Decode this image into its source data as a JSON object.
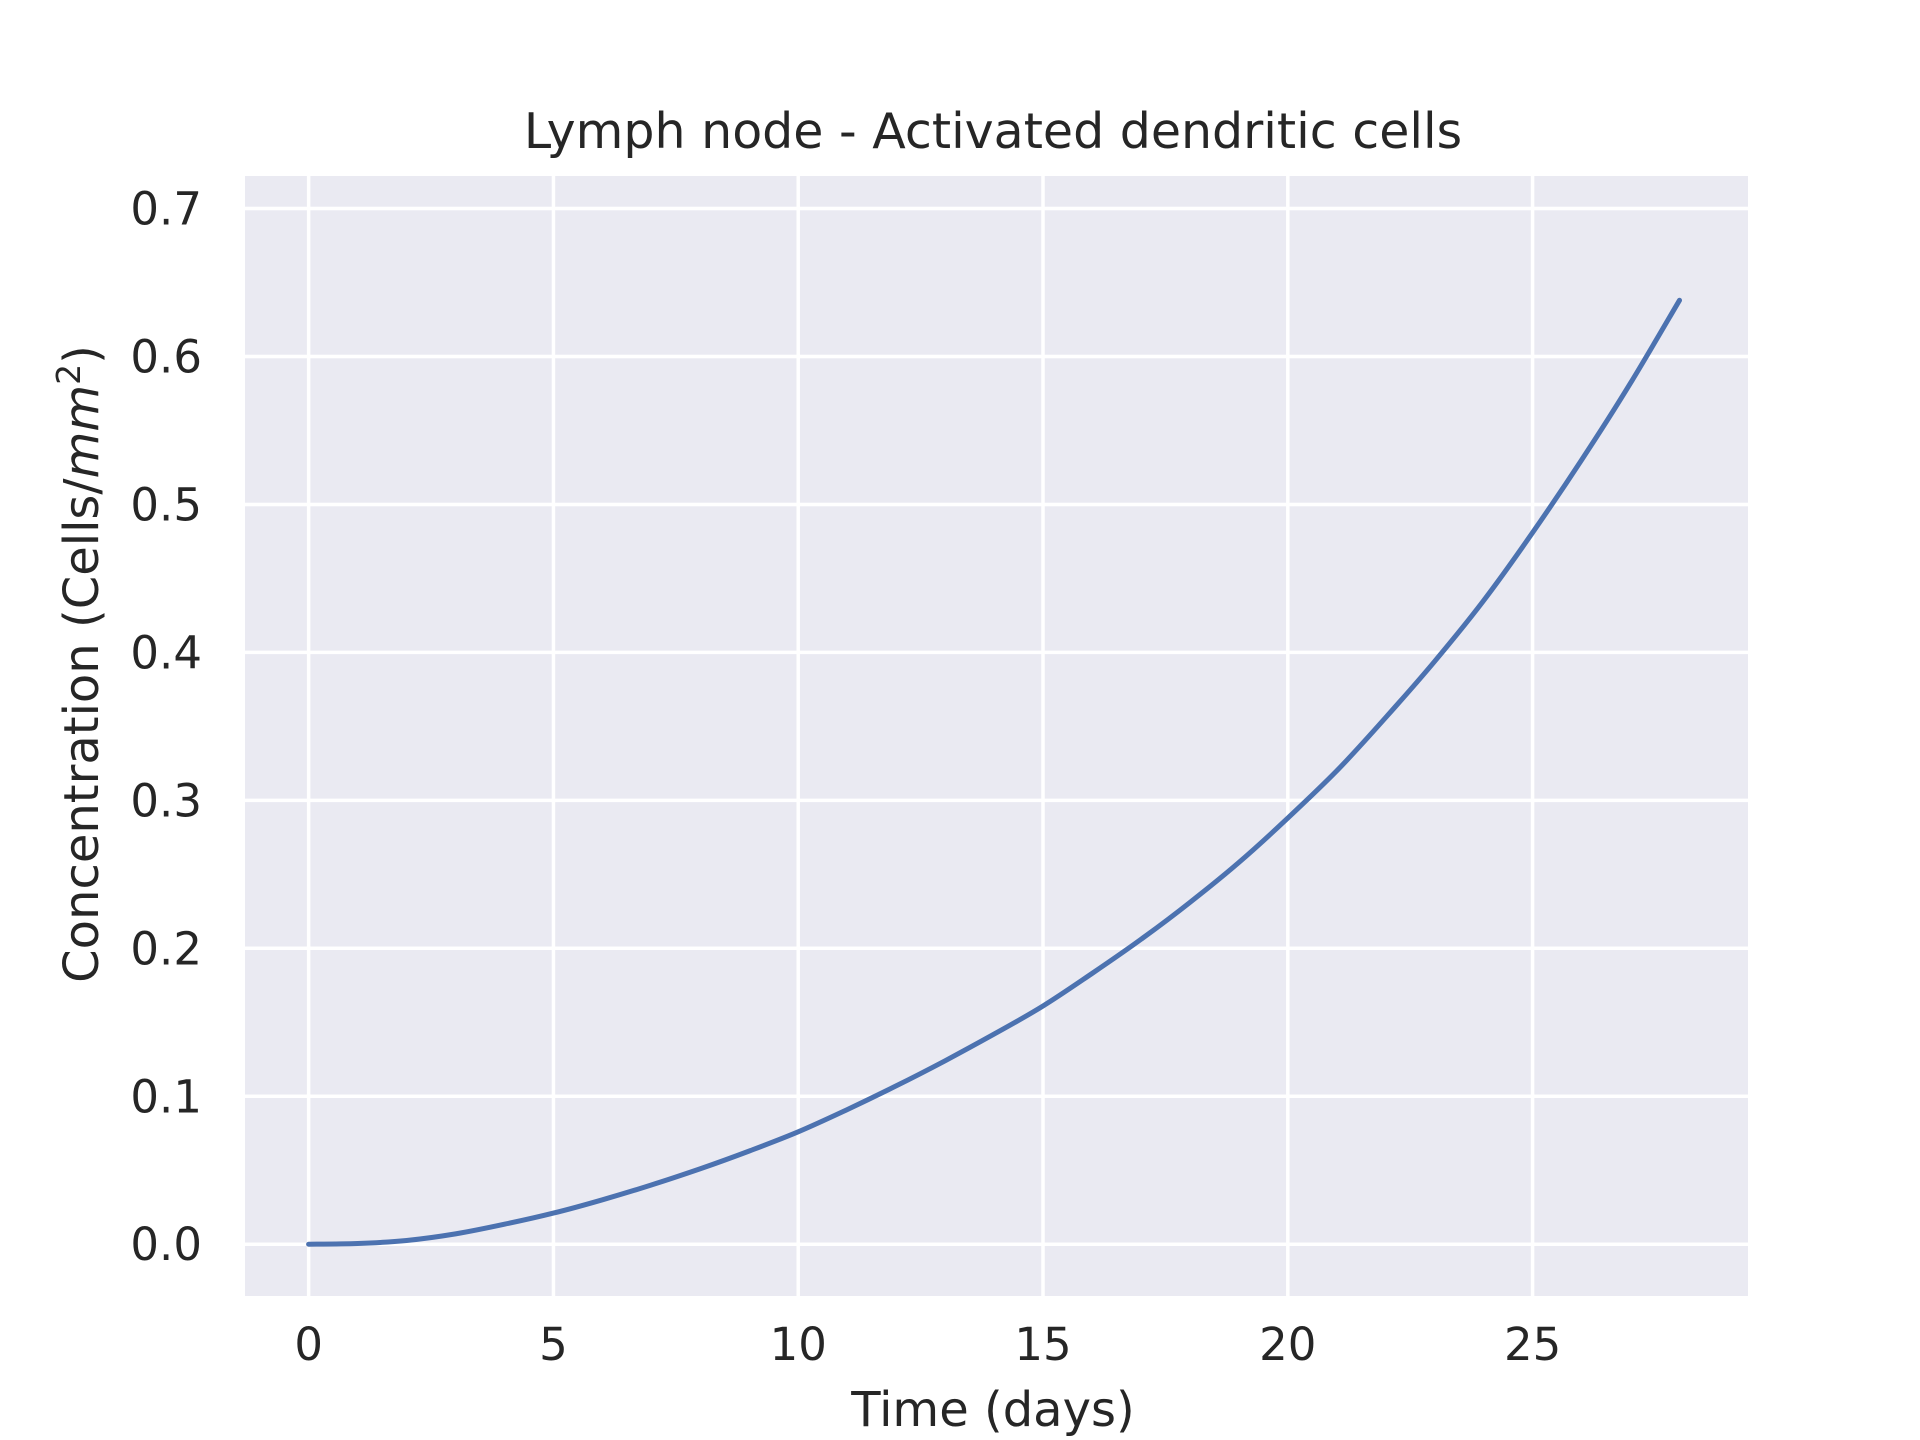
{
  "chart_data": {
    "type": "line",
    "title": "Lymph node - Activated dendritic cells",
    "xlabel": "Time (days)",
    "ylabel_prefix": "Concentration (Cells/",
    "ylabel_unit": "mm",
    "ylabel_exponent": "2",
    "ylabel_suffix": ")",
    "xlim": [
      -1.3,
      29.4
    ],
    "ylim": [
      -0.035,
      0.722
    ],
    "xticks": [
      0,
      5,
      10,
      15,
      20,
      25
    ],
    "xtick_labels": [
      "0",
      "5",
      "10",
      "15",
      "20",
      "25"
    ],
    "yticks": [
      0.0,
      0.1,
      0.2,
      0.3,
      0.4,
      0.5,
      0.6,
      0.7
    ],
    "ytick_labels": [
      "0.0",
      "0.1",
      "0.2",
      "0.3",
      "0.4",
      "0.5",
      "0.6",
      "0.7"
    ],
    "grid": true,
    "background_color": "#EAEAF2",
    "series": [
      {
        "color": "#4C72B0",
        "x": [
          0,
          1,
          2,
          3,
          4,
          5,
          6,
          7,
          8,
          9,
          10,
          11,
          12,
          13,
          14,
          15,
          16,
          17,
          18,
          19,
          20,
          21,
          22,
          23,
          24,
          25,
          26,
          27,
          28
        ],
        "y": [
          0.0,
          0.0005,
          0.0025,
          0.007,
          0.0135,
          0.021,
          0.03,
          0.04,
          0.051,
          0.063,
          0.076,
          0.091,
          0.107,
          0.124,
          0.142,
          0.161,
          0.183,
          0.206,
          0.231,
          0.258,
          0.288,
          0.32,
          0.356,
          0.394,
          0.435,
          0.481,
          0.53,
          0.582,
          0.638
        ]
      }
    ]
  }
}
